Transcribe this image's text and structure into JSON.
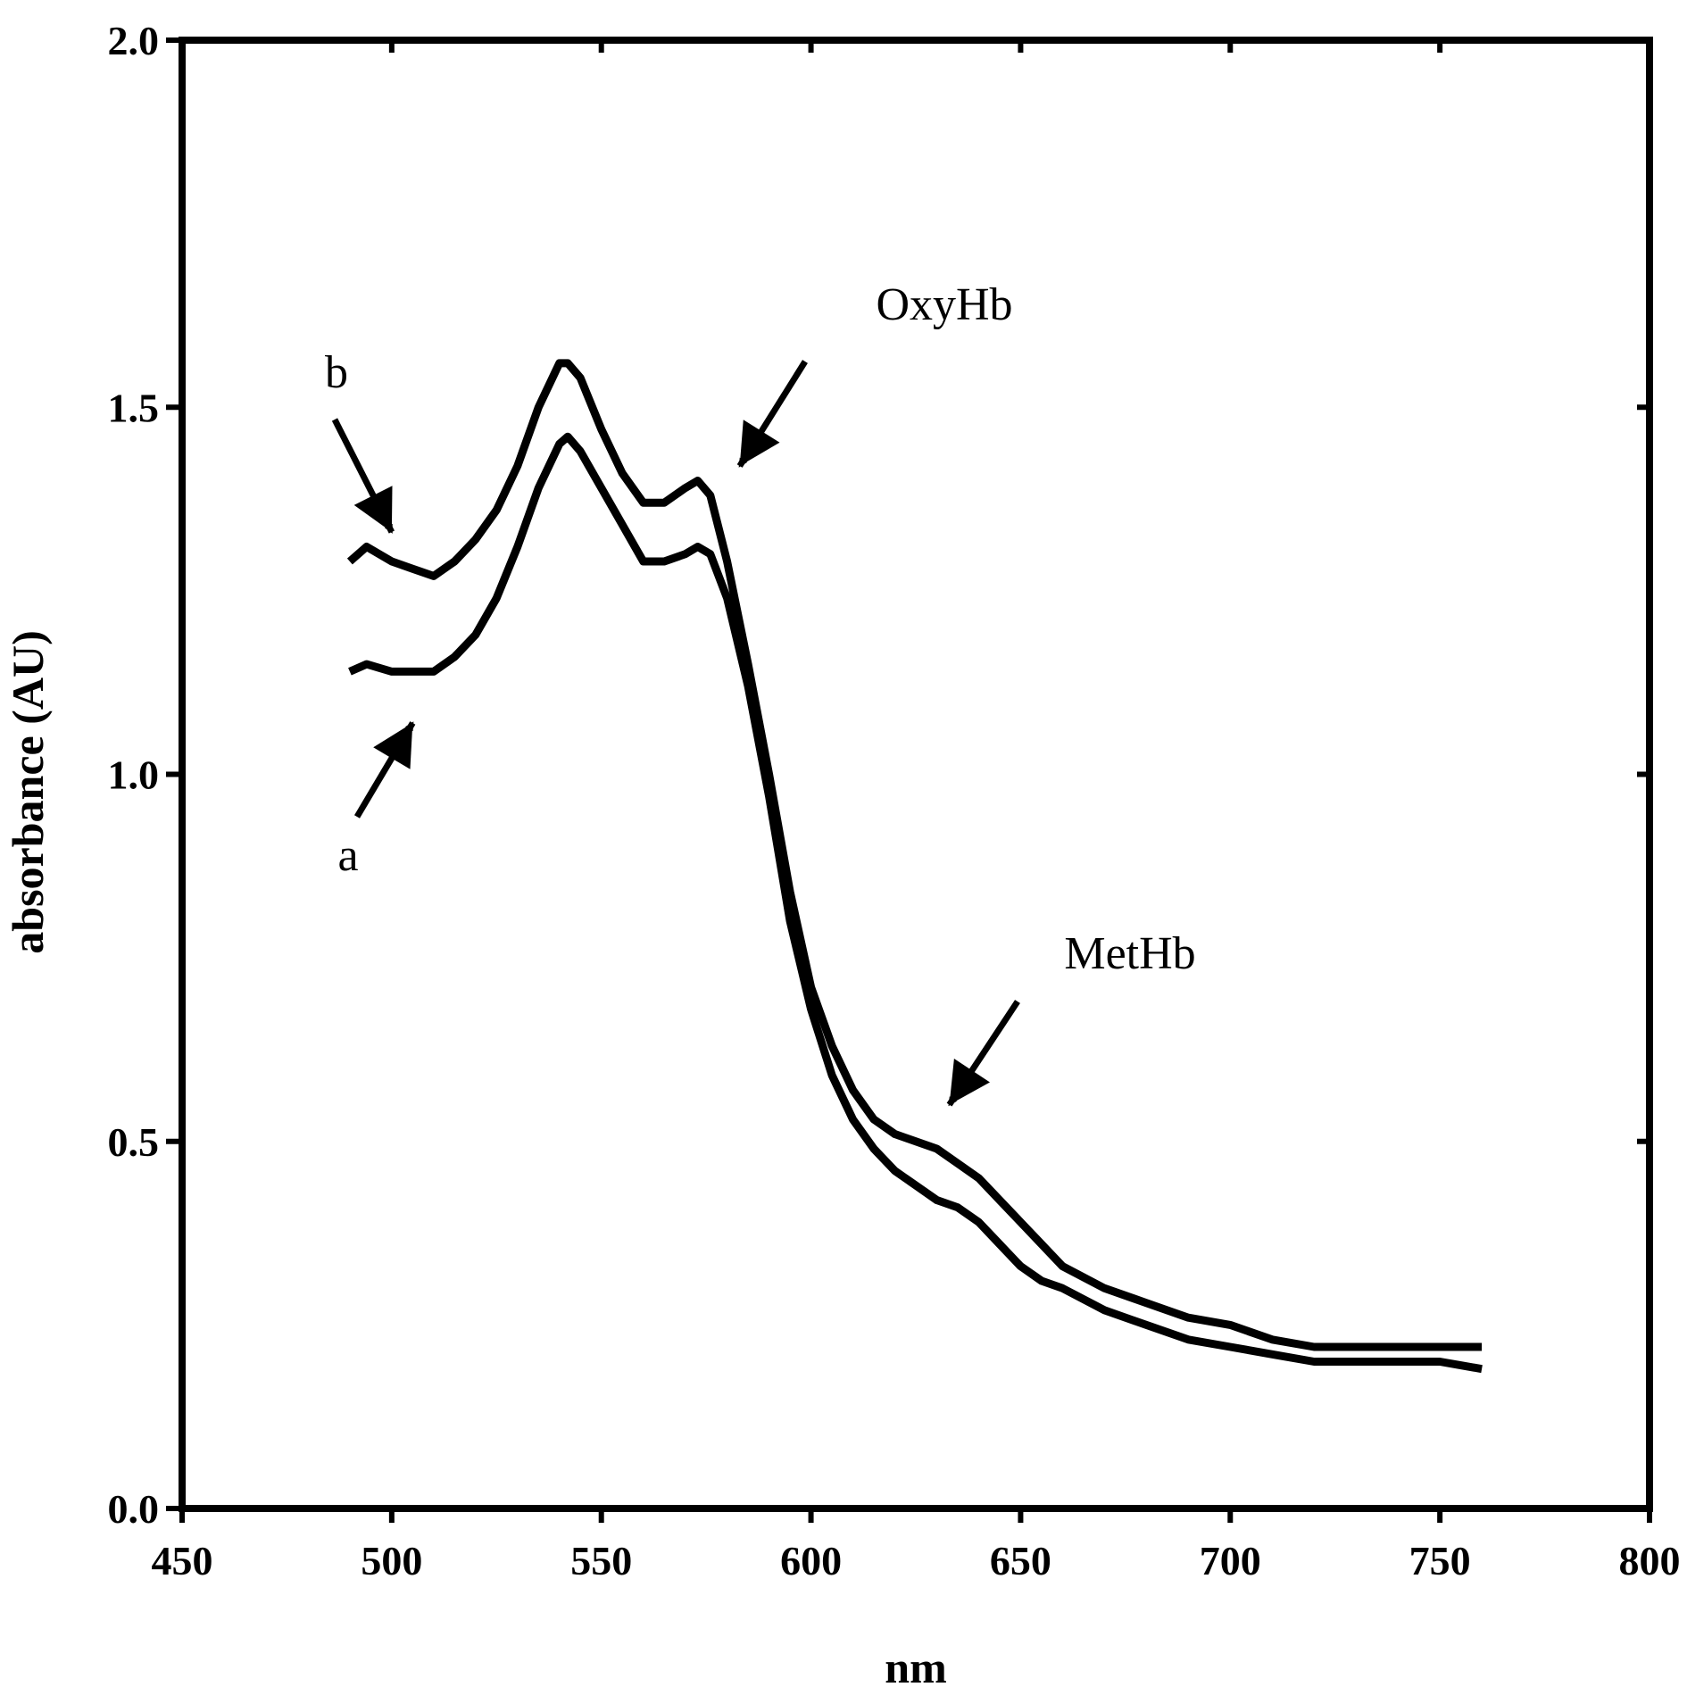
{
  "chart_data": {
    "type": "line",
    "title": "",
    "xlabel": "nm",
    "ylabel": "absorbance (AU)",
    "xlim": [
      450,
      800
    ],
    "ylim": [
      0.0,
      2.0
    ],
    "xticks": [
      450,
      500,
      550,
      600,
      650,
      700,
      750,
      800
    ],
    "xtick_labels": [
      "450",
      "500",
      "550",
      "600",
      "650",
      "700",
      "750",
      "800"
    ],
    "yticks": [
      0.0,
      0.5,
      1.0,
      1.5,
      2.0
    ],
    "ytick_labels": [
      "0.0",
      "0.5",
      "1.0",
      "1.5",
      "2.0"
    ],
    "grid": false,
    "legend": false,
    "series": [
      {
        "name": "a",
        "x": [
          490,
          494,
          500,
          505,
          510,
          515,
          520,
          525,
          530,
          535,
          540,
          542,
          545,
          550,
          555,
          560,
          565,
          570,
          573,
          576,
          580,
          585,
          590,
          595,
          600,
          605,
          610,
          615,
          620,
          625,
          630,
          635,
          640,
          645,
          650,
          655,
          660,
          670,
          680,
          690,
          700,
          710,
          720,
          730,
          740,
          750,
          760
        ],
        "y": [
          1.14,
          1.15,
          1.14,
          1.14,
          1.14,
          1.16,
          1.19,
          1.24,
          1.31,
          1.39,
          1.45,
          1.46,
          1.44,
          1.39,
          1.34,
          1.29,
          1.29,
          1.3,
          1.31,
          1.3,
          1.24,
          1.12,
          0.97,
          0.8,
          0.68,
          0.59,
          0.53,
          0.49,
          0.46,
          0.44,
          0.42,
          0.41,
          0.39,
          0.36,
          0.33,
          0.31,
          0.3,
          0.27,
          0.25,
          0.23,
          0.22,
          0.21,
          0.2,
          0.2,
          0.2,
          0.2,
          0.19
        ]
      },
      {
        "name": "b",
        "x": [
          490,
          494,
          500,
          505,
          510,
          515,
          520,
          525,
          530,
          535,
          540,
          542,
          545,
          550,
          555,
          560,
          565,
          570,
          573,
          576,
          580,
          585,
          590,
          595,
          600,
          605,
          610,
          615,
          620,
          625,
          630,
          635,
          640,
          645,
          650,
          655,
          660,
          670,
          680,
          690,
          700,
          710,
          720,
          730,
          740,
          750,
          760
        ],
        "y": [
          1.29,
          1.31,
          1.29,
          1.28,
          1.27,
          1.29,
          1.32,
          1.36,
          1.42,
          1.5,
          1.56,
          1.56,
          1.54,
          1.47,
          1.41,
          1.37,
          1.37,
          1.39,
          1.4,
          1.38,
          1.29,
          1.15,
          1.0,
          0.84,
          0.71,
          0.63,
          0.57,
          0.53,
          0.51,
          0.5,
          0.49,
          0.47,
          0.45,
          0.42,
          0.39,
          0.36,
          0.33,
          0.3,
          0.28,
          0.26,
          0.25,
          0.23,
          0.22,
          0.22,
          0.22,
          0.22,
          0.22
        ]
      }
    ],
    "annotations": [
      {
        "text": "b",
        "points_to": {
          "x": 500,
          "y": 1.33
        }
      },
      {
        "text": "a",
        "points_to": {
          "x": 505,
          "y": 1.07
        }
      },
      {
        "text": "OxyHb",
        "points_to": {
          "x": 583,
          "y": 1.42
        }
      },
      {
        "text": "MetHb",
        "points_to": {
          "x": 633,
          "y": 0.55
        }
      }
    ]
  }
}
